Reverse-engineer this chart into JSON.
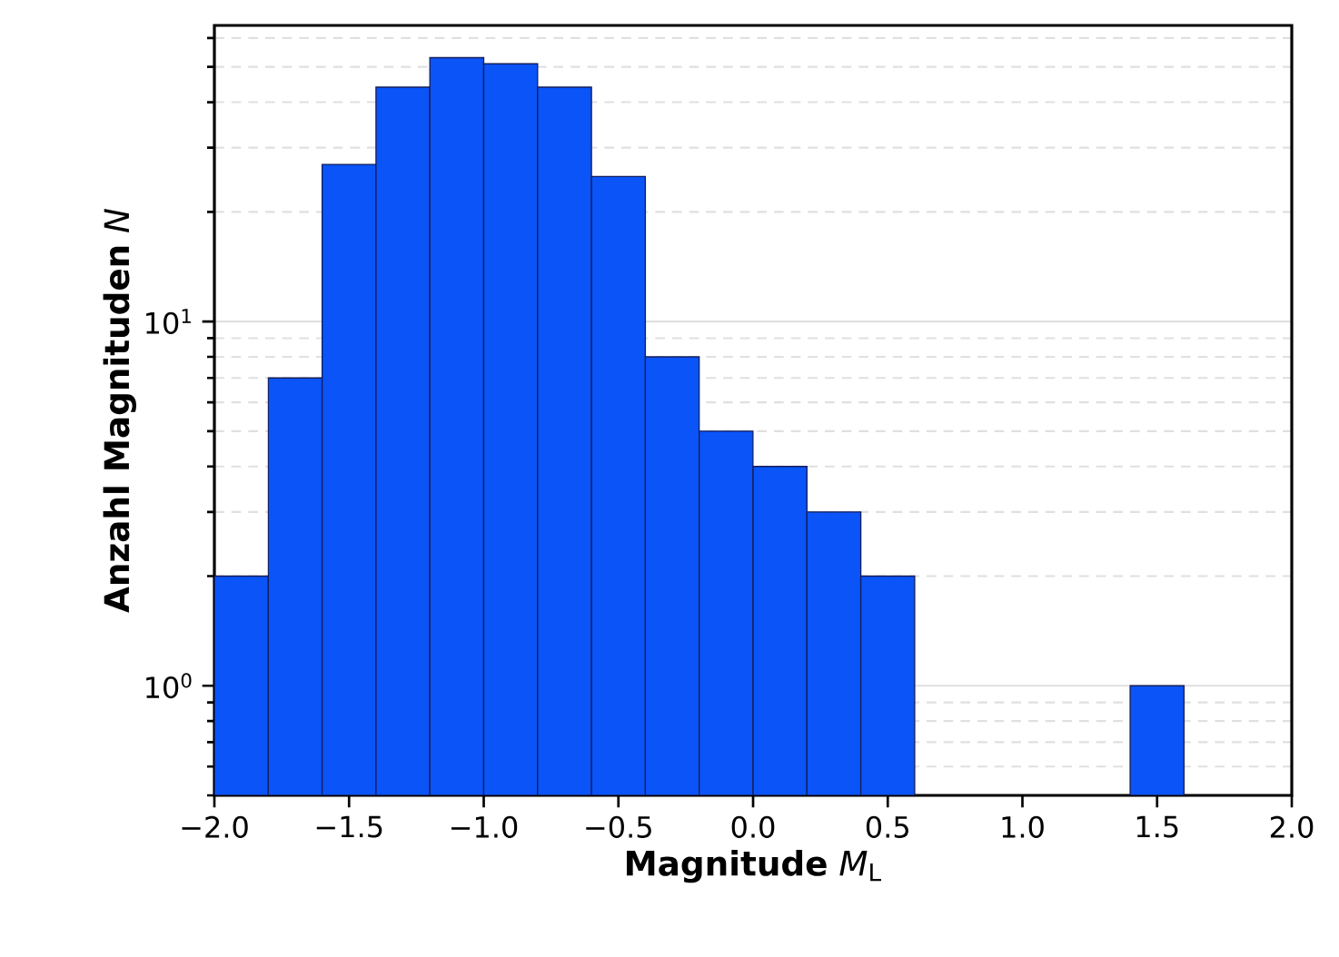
{
  "chart_data": {
    "type": "histogram",
    "xlabel": "**Magnitude** *M*$_{L}$",
    "ylabel": "**Anzahl Magnituden** *N*",
    "bins": [
      -2.0,
      -1.8,
      -1.6,
      -1.4,
      -1.2,
      -1.0,
      -0.8,
      -0.6,
      -0.4,
      -0.2,
      0.0,
      0.2,
      0.4,
      0.6,
      0.8,
      1.0,
      1.2,
      1.4,
      1.6
    ],
    "values": [
      2,
      7,
      27,
      44,
      53,
      51,
      44,
      25,
      8,
      5,
      4,
      3,
      2,
      null,
      null,
      null,
      null,
      1
    ],
    "color": "#0a54f8",
    "log": "y",
    "xlim": [
      -2.0,
      2.0
    ],
    "ylim": [
      0.5,
      65
    ],
    "xticks": [
      {
        "value": -2.0,
        "label": "−2.0"
      },
      {
        "value": -1.5,
        "label": "−1.5"
      },
      {
        "value": -1.0,
        "label": "−1.0"
      },
      {
        "value": -0.5,
        "label": "−0.5"
      },
      {
        "value": 0.0,
        "label": "0.0"
      },
      {
        "value": 0.5,
        "label": "0.5"
      },
      {
        "value": 1.0,
        "label": "1.0"
      },
      {
        "value": 1.5,
        "label": "1.5"
      },
      {
        "value": 2.0,
        "label": "2.0"
      }
    ],
    "yticks": [
      {
        "value": 1,
        "label": "10$^{0}$"
      },
      {
        "value": 10,
        "label": "10$^{1}$"
      }
    ],
    "grid": "y"
  }
}
